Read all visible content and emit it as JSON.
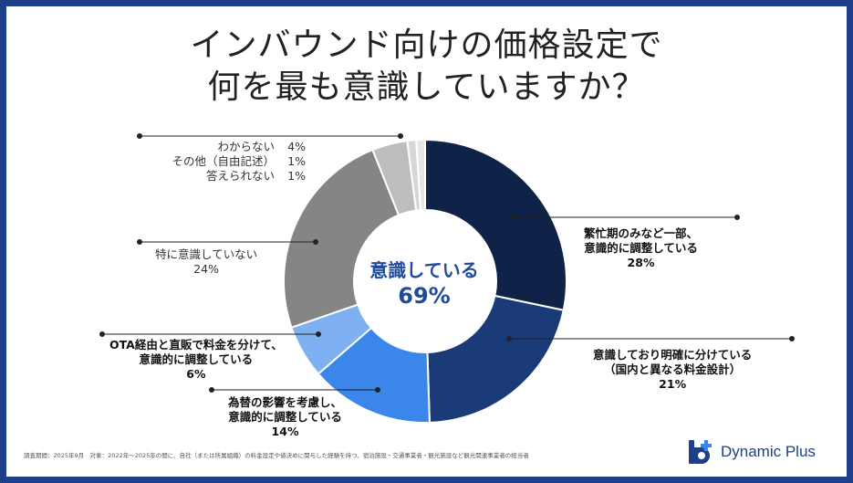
{
  "title": {
    "line1": "インバウンド向けの価格設定で",
    "line2": "何を最も意識していますか？"
  },
  "center": {
    "label": "意識している",
    "value": "69%"
  },
  "chart_data": {
    "type": "pie",
    "title": "インバウンド向けの価格設定で何を最も意識していますか？",
    "slices": [
      {
        "label_lines": [
          "繁忙期のみなど一部、",
          "意識的に調整している"
        ],
        "value": 28,
        "value_label": "28%",
        "color": "#0f2247"
      },
      {
        "label_lines": [
          "意識しており明確に分けている",
          "（国内と異なる料金設計）"
        ],
        "value": 21,
        "value_label": "21%",
        "color": "#1a3b78"
      },
      {
        "label_lines": [
          "為替の影響を考慮し、",
          "意識的に調整している"
        ],
        "value": 14,
        "value_label": "14%",
        "color": "#3a86ea"
      },
      {
        "label_lines": [
          "OTA経由と直販で料金を分けて、",
          "意識的に調整している"
        ],
        "value": 6,
        "value_label": "6%",
        "color": "#7fb1f2"
      },
      {
        "label_lines": [
          "特に意識していない"
        ],
        "value": 24,
        "value_label": "24%",
        "color": "#858585"
      },
      {
        "label_lines": [
          "わからない"
        ],
        "value": 4,
        "value_label": "4%",
        "color": "#bdbdbd"
      },
      {
        "label_lines": [
          "その他（自由記述）"
        ],
        "value": 1,
        "value_label": "1%",
        "color": "#d6d6d6"
      },
      {
        "label_lines": [
          "答えられない"
        ],
        "value": 1,
        "value_label": "1%",
        "color": "#e6e6e6"
      }
    ],
    "center_label": "意識している",
    "center_value": "69%"
  },
  "labels": {
    "l28": {
      "line1": "繁忙期のみなど一部、",
      "line2": "意識的に調整している",
      "pct": "28%"
    },
    "l21": {
      "line1": "意識しており明確に分けている",
      "line2": "（国内と異なる料金設計）",
      "pct": "21%"
    },
    "l14": {
      "line1": "為替の影響を考慮し、",
      "line2": "意識的に調整している",
      "pct": "14%"
    },
    "l6": {
      "line1": "OTA経由と直販で料金を分けて、",
      "line2": "意識的に調整している",
      "pct": "6%"
    },
    "l24": {
      "line1": "特に意識していない",
      "pct": "24%"
    },
    "lsmall": [
      {
        "label": "わからない",
        "pct": "4%"
      },
      {
        "label": "その他（自由記述）",
        "pct": "1%"
      },
      {
        "label": "答えられない",
        "pct": "1%"
      }
    ]
  },
  "footnote": "調査期間：2025年9月　対象：2022年～2025年の間に、自社（または所属組織）の料金設定や値決めに関与した経験を持つ、宿泊施設・交通事業者・観光施設など観光関連事業者の担当者",
  "brand": {
    "name": "Dynamic Plus",
    "color": "#1e3f8a"
  }
}
